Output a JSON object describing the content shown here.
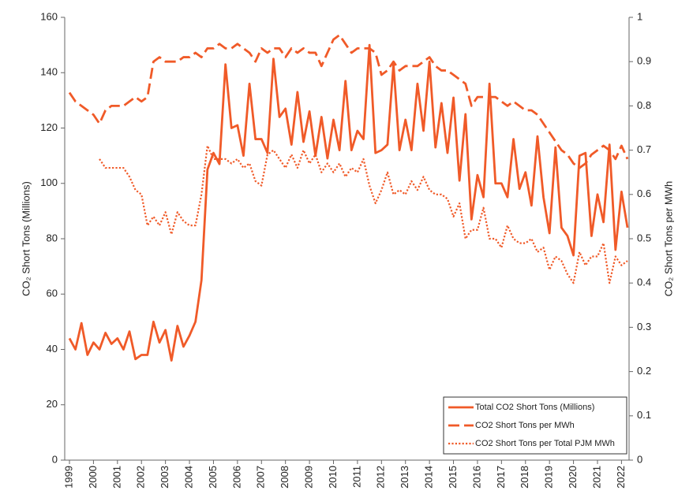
{
  "chart_data": {
    "type": "line",
    "y_label": "CO₂ Short Tons (Millions)",
    "y2_label": "CO₂ Short Tons per MWh",
    "categories": [
      "1999",
      null,
      null,
      null,
      "2000",
      null,
      null,
      null,
      "2001",
      null,
      null,
      null,
      "2002",
      null,
      null,
      null,
      "2003",
      null,
      null,
      null,
      "2004",
      null,
      null,
      null,
      "2005",
      null,
      null,
      null,
      "2006",
      null,
      null,
      null,
      "2007",
      null,
      null,
      null,
      "2008",
      null,
      null,
      null,
      "2009",
      null,
      null,
      null,
      "2010",
      null,
      null,
      null,
      "2011",
      null,
      null,
      null,
      "2012",
      null,
      null,
      null,
      "2013",
      null,
      null,
      null,
      "2014",
      null,
      null,
      null,
      "2015",
      null,
      null,
      null,
      "2016",
      null,
      null,
      null,
      "2017",
      null,
      null,
      null,
      "2018",
      null,
      null,
      null,
      "2019",
      null,
      null,
      null,
      "2020",
      null,
      null,
      null,
      "2021",
      null,
      null,
      null,
      "2022",
      null
    ],
    "ylim": [
      0,
      160
    ],
    "yticks": [
      0,
      20,
      40,
      60,
      80,
      100,
      120,
      140,
      160
    ],
    "y2lim": [
      0,
      1
    ],
    "y2ticks": [
      0,
      0.1,
      0.2,
      0.3,
      0.4,
      0.5,
      0.6,
      0.7,
      0.8,
      0.9,
      1
    ],
    "grid": false,
    "legend": "lower right",
    "series": [
      {
        "name": "Total CO2 Short Tons (Millions)",
        "color": "#f05a28",
        "style": "solid",
        "values": [
          44,
          40,
          49.5,
          38,
          42.5,
          40,
          46,
          42,
          44,
          40,
          46.5,
          36.5,
          38,
          38,
          50,
          42.5,
          47,
          36,
          48.5,
          41,
          45,
          50,
          65,
          105,
          111,
          107,
          143,
          120,
          121,
          110,
          136,
          116,
          116,
          111,
          145,
          124,
          127,
          114,
          133,
          115,
          126,
          110,
          124,
          109,
          123,
          112,
          137,
          112,
          119,
          116,
          150,
          111,
          112,
          114,
          143,
          112,
          123,
          112,
          136,
          119,
          144,
          113,
          129,
          111,
          131,
          101,
          125,
          87,
          103,
          95,
          136,
          100,
          100,
          95,
          116,
          98,
          104,
          92,
          117,
          95,
          82,
          113,
          84,
          81,
          74,
          110,
          111,
          81,
          96,
          86,
          114,
          76,
          97,
          84
        ]
      },
      {
        "name": "CO2 Short Tons per MWh",
        "color": "#f05a28",
        "style": "dashed",
        "axis": "y2",
        "values": [
          0.83,
          0.81,
          0.8,
          0.79,
          0.78,
          0.76,
          0.79,
          0.8,
          0.8,
          0.8,
          0.81,
          0.82,
          0.81,
          0.82,
          0.9,
          0.91,
          0.9,
          0.9,
          0.9,
          0.91,
          0.91,
          0.92,
          0.91,
          0.93,
          0.93,
          0.94,
          0.93,
          0.93,
          0.94,
          0.93,
          0.92,
          0.9,
          0.93,
          0.92,
          0.93,
          0.93,
          0.91,
          0.93,
          0.92,
          0.93,
          0.92,
          0.92,
          0.89,
          0.92,
          0.95,
          0.96,
          0.94,
          0.92,
          0.93,
          0.93,
          0.93,
          0.92,
          0.87,
          0.88,
          0.9,
          0.88,
          0.89,
          0.89,
          0.89,
          0.9,
          0.91,
          0.89,
          0.88,
          0.88,
          0.87,
          0.86,
          0.85,
          0.8,
          0.82,
          0.82,
          0.82,
          0.82,
          0.81,
          0.8,
          0.81,
          0.8,
          0.79,
          0.79,
          0.78,
          0.76,
          0.74,
          0.72,
          0.7,
          0.69,
          0.67,
          0.66,
          0.67,
          0.69,
          0.7,
          0.71,
          0.7,
          0.68,
          0.71,
          0.68
        ]
      },
      {
        "name": "CO2 Short Tons per Total PJM MWh",
        "color": "#f05a28",
        "style": "dotted",
        "axis": "y2",
        "values": [
          null,
          null,
          null,
          null,
          null,
          0.68,
          0.66,
          0.66,
          0.66,
          0.66,
          0.64,
          0.61,
          0.6,
          0.53,
          0.55,
          0.53,
          0.56,
          0.51,
          0.56,
          0.54,
          0.53,
          0.53,
          0.6,
          0.71,
          0.68,
          0.68,
          0.68,
          0.67,
          0.68,
          0.66,
          0.67,
          0.63,
          0.62,
          0.69,
          0.7,
          0.68,
          0.66,
          0.69,
          0.66,
          0.7,
          0.67,
          0.69,
          0.65,
          0.67,
          0.65,
          0.67,
          0.64,
          0.66,
          0.65,
          0.68,
          0.62,
          0.58,
          0.61,
          0.65,
          0.6,
          0.61,
          0.6,
          0.63,
          0.61,
          0.64,
          0.61,
          0.6,
          0.6,
          0.59,
          0.55,
          0.58,
          0.5,
          0.52,
          0.52,
          0.57,
          0.5,
          0.5,
          0.48,
          0.53,
          0.5,
          0.49,
          0.49,
          0.5,
          0.47,
          0.48,
          0.43,
          0.46,
          0.45,
          0.42,
          0.4,
          0.47,
          0.44,
          0.46,
          0.46,
          0.49,
          0.4,
          0.46,
          0.44,
          0.45
        ]
      }
    ]
  }
}
